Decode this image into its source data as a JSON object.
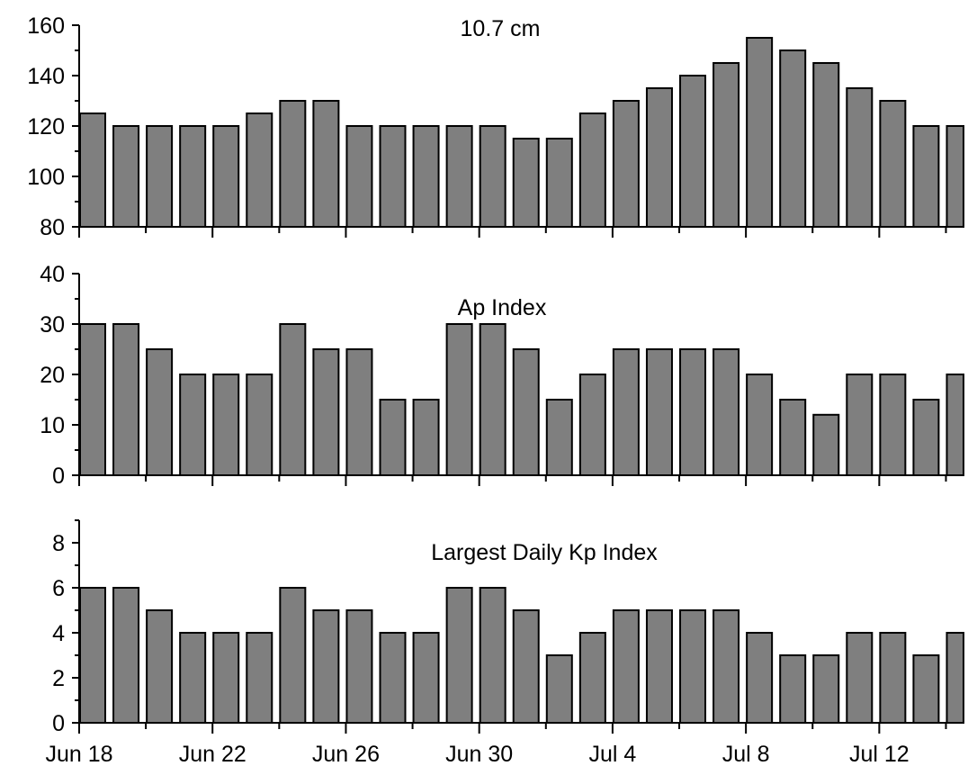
{
  "colors": {
    "bar_fill": "#7f7f7f",
    "bar_stroke": "#000000",
    "axis": "#000000"
  },
  "x_ticks": [
    "Jun 18",
    "Jun 22",
    "Jun 26",
    "Jun 30",
    "Jul 4",
    "Jul 8",
    "Jul 12"
  ],
  "chart_data": [
    {
      "type": "bar",
      "title": "10.7 cm",
      "xlabel": "",
      "ylabel": "",
      "categories": [
        "Jun 18",
        "Jun 19",
        "Jun 20",
        "Jun 21",
        "Jun 22",
        "Jun 23",
        "Jun 24",
        "Jun 25",
        "Jun 26",
        "Jun 27",
        "Jun 28",
        "Jun 29",
        "Jun 30",
        "Jul 1",
        "Jul 2",
        "Jul 3",
        "Jul 4",
        "Jul 5",
        "Jul 6",
        "Jul 7",
        "Jul 8",
        "Jul 9",
        "Jul 10",
        "Jul 11",
        "Jul 12",
        "Jul 13",
        "Jul 14"
      ],
      "values": [
        125,
        120,
        120,
        120,
        120,
        125,
        130,
        130,
        120,
        120,
        120,
        120,
        120,
        115,
        115,
        125,
        130,
        135,
        140,
        145,
        155,
        150,
        145,
        135,
        130,
        120,
        120
      ],
      "ylim": [
        80,
        160
      ],
      "yticks": [
        "80",
        "100",
        "120",
        "140",
        "160"
      ],
      "grid": false
    },
    {
      "type": "bar",
      "title": "Ap Index",
      "xlabel": "",
      "ylabel": "",
      "categories": [
        "Jun 18",
        "Jun 19",
        "Jun 20",
        "Jun 21",
        "Jun 22",
        "Jun 23",
        "Jun 24",
        "Jun 25",
        "Jun 26",
        "Jun 27",
        "Jun 28",
        "Jun 29",
        "Jun 30",
        "Jul 1",
        "Jul 2",
        "Jul 3",
        "Jul 4",
        "Jul 5",
        "Jul 6",
        "Jul 7",
        "Jul 8",
        "Jul 9",
        "Jul 10",
        "Jul 11",
        "Jul 12",
        "Jul 13",
        "Jul 14"
      ],
      "values": [
        30,
        30,
        25,
        20,
        20,
        20,
        30,
        25,
        25,
        15,
        15,
        30,
        30,
        25,
        15,
        20,
        25,
        25,
        25,
        25,
        20,
        15,
        12,
        20,
        20,
        15,
        20
      ],
      "ylim": [
        0,
        40
      ],
      "yticks": [
        "0",
        "10",
        "20",
        "30",
        "40"
      ],
      "grid": false
    },
    {
      "type": "bar",
      "title": "Largest Daily Kp Index",
      "xlabel": "",
      "ylabel": "",
      "categories": [
        "Jun 18",
        "Jun 19",
        "Jun 20",
        "Jun 21",
        "Jun 22",
        "Jun 23",
        "Jun 24",
        "Jun 25",
        "Jun 26",
        "Jun 27",
        "Jun 28",
        "Jun 29",
        "Jun 30",
        "Jul 1",
        "Jul 2",
        "Jul 3",
        "Jul 4",
        "Jul 5",
        "Jul 6",
        "Jul 7",
        "Jul 8",
        "Jul 9",
        "Jul 10",
        "Jul 11",
        "Jul 12",
        "Jul 13",
        "Jul 14"
      ],
      "values": [
        6,
        6,
        5,
        4,
        4,
        4,
        6,
        5,
        5,
        4,
        4,
        6,
        6,
        5,
        3,
        4,
        5,
        5,
        5,
        5,
        4,
        3,
        3,
        4,
        4,
        3,
        4
      ],
      "ylim": [
        0,
        9
      ],
      "yticks": [
        "0",
        "2",
        "4",
        "6",
        "8"
      ],
      "grid": false
    }
  ]
}
